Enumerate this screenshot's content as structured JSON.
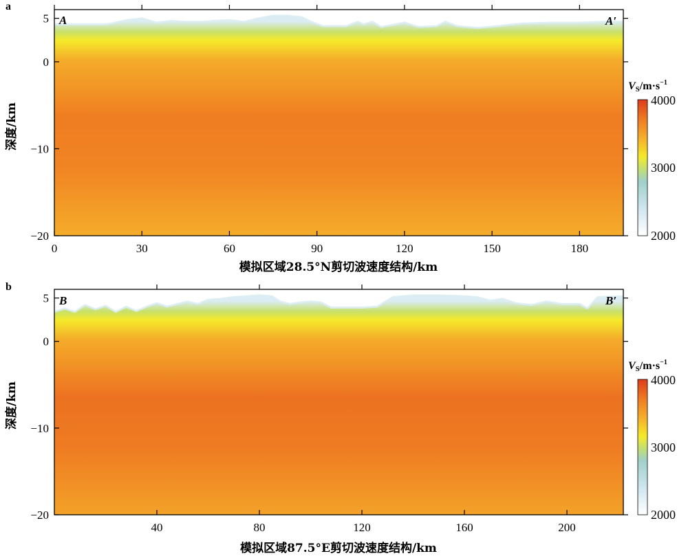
{
  "chart_data": [
    {
      "type": "heatmap",
      "panel_label": "a",
      "xlabel": "模拟区域28.5°N剪切波速度结构/km",
      "ylabel": "深度/km",
      "xlim": [
        0,
        195
      ],
      "ylim": [
        -20,
        6
      ],
      "x_ticks": [
        0,
        30,
        60,
        90,
        120,
        150,
        180
      ],
      "y_ticks": [
        5,
        0,
        -10,
        -20
      ],
      "start_label": "A",
      "end_label": "A′",
      "colorbar": {
        "title_main": "V",
        "title_sub": "S",
        "title_unit": "/m·s",
        "title_exp": "−1",
        "ticks": [
          4000,
          3000,
          2000
        ],
        "range": [
          2000,
          4000
        ]
      },
      "surface_km": [
        [
          0,
          4.3
        ],
        [
          10,
          4.3
        ],
        [
          18,
          4.3
        ],
        [
          25,
          4.8
        ],
        [
          30,
          5.0
        ],
        [
          35,
          4.5
        ],
        [
          40,
          4.7
        ],
        [
          45,
          4.6
        ],
        [
          50,
          4.6
        ],
        [
          55,
          4.7
        ],
        [
          60,
          4.8
        ],
        [
          65,
          4.6
        ],
        [
          70,
          5.0
        ],
        [
          75,
          5.3
        ],
        [
          80,
          5.3
        ],
        [
          85,
          5.1
        ],
        [
          88,
          4.6
        ],
        [
          92,
          4.1
        ],
        [
          100,
          4.1
        ],
        [
          104,
          4.6
        ],
        [
          106,
          4.3
        ],
        [
          109,
          4.6
        ],
        [
          112,
          4.0
        ],
        [
          120,
          4.5
        ],
        [
          125,
          4.0
        ],
        [
          131,
          4.1
        ],
        [
          134,
          4.6
        ],
        [
          138,
          4.1
        ],
        [
          145,
          3.9
        ],
        [
          152,
          4.1
        ],
        [
          160,
          4.4
        ],
        [
          170,
          4.5
        ],
        [
          180,
          4.5
        ],
        [
          188,
          4.6
        ],
        [
          195,
          4.6
        ]
      ],
      "velocity_field": {
        "min": 2000,
        "max": 4000,
        "surface_velocity": 2300,
        "near_surface_velocity": 3000,
        "mid_crust_velocity": 3700,
        "deep_velocity": 3450
      }
    },
    {
      "type": "heatmap",
      "panel_label": "b",
      "xlabel": "模拟区域87.5°E剪切波速度结构/km",
      "ylabel": "深度/km",
      "xlim": [
        0,
        222
      ],
      "ylim": [
        -20,
        6
      ],
      "x_ticks": [
        40,
        80,
        120,
        160,
        200
      ],
      "y_ticks": [
        5,
        0,
        -10,
        -20
      ],
      "start_label": "B",
      "end_label": "B′",
      "colorbar": {
        "title_main": "V",
        "title_sub": "S",
        "title_unit": "/m·s",
        "title_exp": "−1",
        "ticks": [
          4000,
          3000,
          2000
        ],
        "range": [
          2000,
          4000
        ]
      },
      "surface_km": [
        [
          0,
          3.4
        ],
        [
          4,
          3.8
        ],
        [
          8,
          3.4
        ],
        [
          12,
          4.2
        ],
        [
          16,
          3.7
        ],
        [
          20,
          4.1
        ],
        [
          24,
          3.4
        ],
        [
          28,
          4.0
        ],
        [
          32,
          3.5
        ],
        [
          36,
          4.0
        ],
        [
          40,
          4.4
        ],
        [
          44,
          4.0
        ],
        [
          48,
          4.3
        ],
        [
          52,
          4.6
        ],
        [
          56,
          4.3
        ],
        [
          60,
          4.8
        ],
        [
          65,
          4.9
        ],
        [
          70,
          5.1
        ],
        [
          75,
          5.2
        ],
        [
          80,
          5.3
        ],
        [
          85,
          5.2
        ],
        [
          88,
          4.6
        ],
        [
          92,
          4.3
        ],
        [
          96,
          4.5
        ],
        [
          100,
          4.6
        ],
        [
          104,
          4.5
        ],
        [
          108,
          3.9
        ],
        [
          120,
          3.9
        ],
        [
          126,
          4.0
        ],
        [
          132,
          5.1
        ],
        [
          140,
          5.3
        ],
        [
          150,
          5.3
        ],
        [
          160,
          5.2
        ],
        [
          165,
          5.1
        ],
        [
          170,
          4.7
        ],
        [
          175,
          4.9
        ],
        [
          180,
          4.4
        ],
        [
          186,
          4.2
        ],
        [
          192,
          4.6
        ],
        [
          198,
          4.3
        ],
        [
          205,
          4.3
        ],
        [
          208,
          3.8
        ],
        [
          212,
          5.1
        ],
        [
          222,
          5.2
        ]
      ],
      "velocity_field": {
        "min": 2000,
        "max": 4000,
        "surface_velocity": 2300,
        "near_surface_velocity": 3000,
        "mid_crust_velocity": 3750,
        "deep_velocity": 3500
      }
    }
  ]
}
